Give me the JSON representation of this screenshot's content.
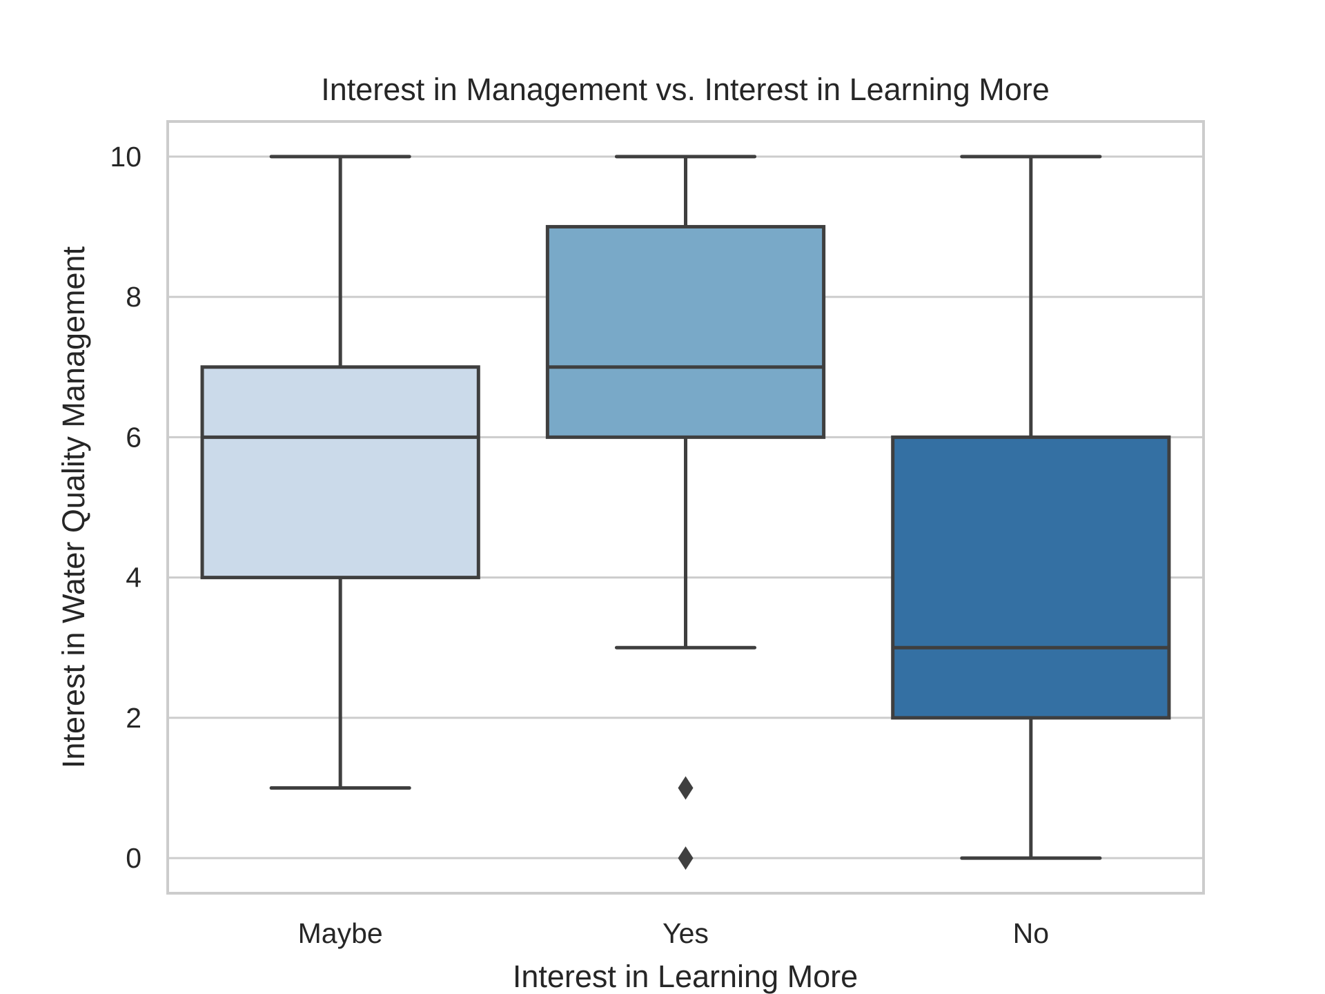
{
  "chart_data": {
    "type": "box",
    "title": "Interest in Management vs. Interest in Learning More",
    "xlabel": "Interest in Learning More",
    "ylabel": "Interest in Water Quality Management",
    "categories": [
      "Maybe",
      "Yes",
      "No"
    ],
    "ylim": [
      -0.5,
      10.5
    ],
    "yticks": [
      0,
      2,
      4,
      6,
      8,
      10
    ],
    "grid": "horizontal",
    "boxes": [
      {
        "category": "Maybe",
        "whisker_low": 1,
        "q1": 4,
        "median": 6,
        "q3": 7,
        "whisker_high": 10,
        "outliers": [],
        "color": "#cbdaea"
      },
      {
        "category": "Yes",
        "whisker_low": 3,
        "q1": 6,
        "median": 7,
        "q3": 9,
        "whisker_high": 10,
        "outliers": [
          1,
          0
        ],
        "color": "#79a9c8"
      },
      {
        "category": "No",
        "whisker_low": 0,
        "q1": 2,
        "median": 3,
        "q3": 6,
        "whisker_high": 10,
        "outliers": [],
        "color": "#3470a3"
      }
    ],
    "line_color": "#3f3f3f",
    "grid_color": "#cccccc"
  }
}
